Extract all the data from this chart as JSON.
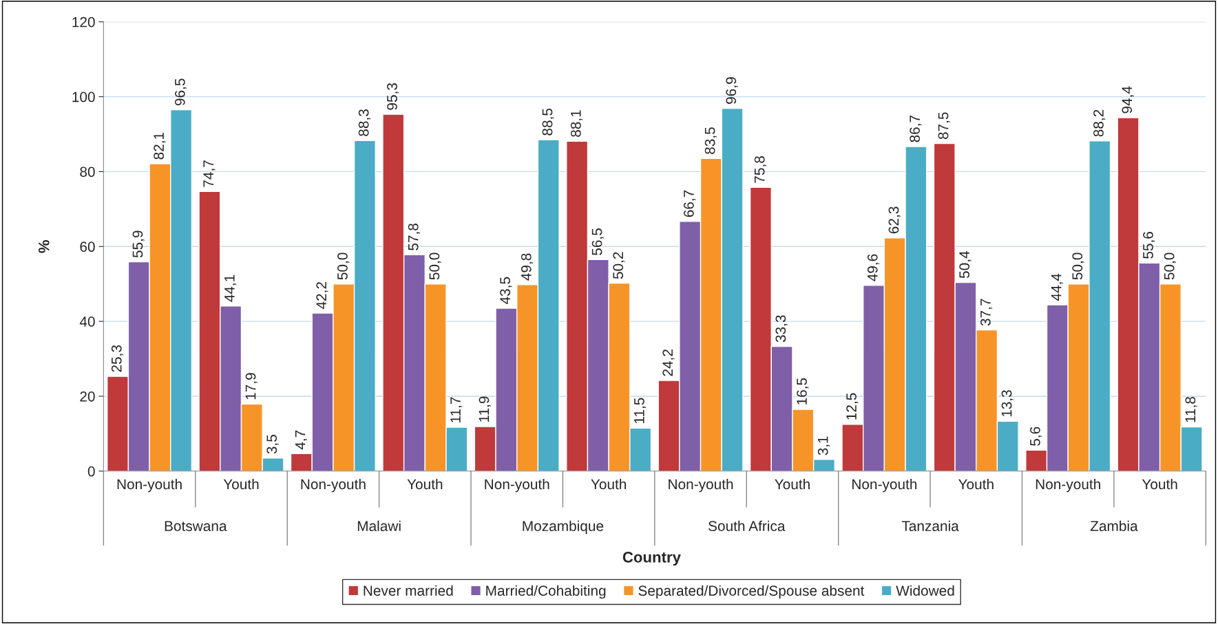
{
  "chart_data": {
    "type": "bar",
    "categories": [
      "Non-youth",
      "Youth",
      "Non-youth",
      "Youth",
      "Non-youth",
      "Youth",
      "Non-youth",
      "Youth",
      "Non-youth",
      "Youth",
      "Non-youth",
      "Youth"
    ],
    "annotations": [
      "Botswana",
      "Malawi",
      "Mozambique",
      "South Africa",
      "Tanzania",
      "Zambia"
    ],
    "xlabel": "Country",
    "ylabel": "%",
    "series": [
      {
        "name": "Never married",
        "color": "#c0393b",
        "values": [
          25.3,
          74.7,
          4.7,
          95.3,
          11.9,
          88.1,
          24.2,
          75.8,
          12.5,
          87.5,
          5.6,
          94.4
        ],
        "value_labels": [
          "25,3",
          "74,7",
          "4,7",
          "95,3",
          "11,9",
          "88,1",
          "24,2",
          "75,8",
          "12,5",
          "87,5",
          "5,6",
          "94,4"
        ]
      },
      {
        "name": "Married/Cohabiting",
        "color": "#7f5fa8",
        "values": [
          55.9,
          44.1,
          42.2,
          57.8,
          43.5,
          56.5,
          66.7,
          33.3,
          49.6,
          50.4,
          44.4,
          55.6
        ],
        "value_labels": [
          "55,9",
          "44,1",
          "42,2",
          "57,8",
          "43,5",
          "56,5",
          "66,7",
          "33,3",
          "49,6",
          "50,4",
          "44,4",
          "55,6"
        ]
      },
      {
        "name": "Separated/Divorced/Spouse absent",
        "color": "#f79428",
        "values": [
          82.1,
          17.9,
          50.0,
          50.0,
          49.8,
          50.2,
          83.5,
          16.5,
          62.3,
          37.7,
          50.0,
          50.0
        ],
        "value_labels": [
          "82,1",
          "17,9",
          "50,0",
          "50,0",
          "49,8",
          "50,2",
          "83,5",
          "16,5",
          "62,3",
          "37,7",
          "50,0",
          "50,0"
        ]
      },
      {
        "name": "Widowed",
        "color": "#4bacc6",
        "values": [
          96.5,
          3.5,
          88.3,
          11.7,
          88.5,
          11.5,
          96.9,
          3.1,
          86.7,
          13.3,
          88.2,
          11.8
        ],
        "value_labels": [
          "96,5",
          "3,5",
          "88,3",
          "11,7",
          "88,5",
          "11,5",
          "96,9",
          "3,1",
          "86,7",
          "13,3",
          "88,2",
          "11,8"
        ]
      }
    ],
    "ylim": [
      0,
      120
    ],
    "yticks": [
      0,
      20,
      40,
      60,
      80,
      100,
      120
    ],
    "grid": "y",
    "legend": "bottom"
  }
}
